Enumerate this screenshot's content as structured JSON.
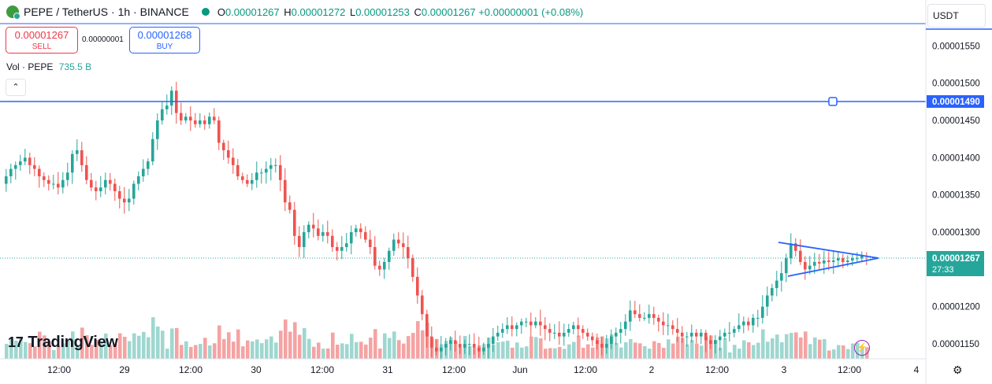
{
  "header": {
    "symbol": "PEPE / TetherUS · 1h · BINANCE",
    "ohlc": {
      "o_label": "O",
      "o": "0.00001267",
      "h_label": "H",
      "h": "0.00001272",
      "l_label": "L",
      "l": "0.00001253",
      "c_label": "C",
      "c": "0.00001267",
      "change": "+0.00000001 (+0.08%)"
    }
  },
  "trade": {
    "sell_price": "0.00001267",
    "sell_label": "SELL",
    "spread": "0.00000001",
    "buy_price": "0.00001268",
    "buy_label": "BUY"
  },
  "volume_legend": {
    "label": "Vol · PEPE",
    "value": "735.5 B"
  },
  "currency": "USDT",
  "brand": "TradingView",
  "colors": {
    "up": "#26a69a",
    "down": "#ef5350",
    "up_vol": "#9fd7d0",
    "down_vol": "#f5a3a3",
    "line": "#2962ff"
  },
  "price_axis": {
    "ticks": [
      "0.00001550",
      "0.00001500",
      "0.00001450",
      "0.00001400",
      "0.00001350",
      "0.00001300",
      "0.00001200",
      "0.00001150"
    ],
    "tick_values": [
      1.55e-05,
      1.5e-05,
      1.45e-05,
      1.4e-05,
      1.35e-05,
      1.3e-05,
      1.2e-05,
      1.15e-05
    ],
    "last_price_label": "0.00001267",
    "countdown": "27:33",
    "hline_label": "0.00001490",
    "range": [
      1.13e-05,
      1.58e-05
    ]
  },
  "time_axis": [
    "12:00",
    "29",
    "12:00",
    "30",
    "12:00",
    "31",
    "12:00",
    "Jun",
    "12:00",
    "2",
    "12:00",
    "3",
    "12:00",
    "4"
  ],
  "chart_data": {
    "type": "candlestick",
    "symbol": "PEPE / TetherUS",
    "interval": "1h",
    "horizontal_line": 1.49e-05,
    "last_price": 1.267e-05,
    "triangle_pattern": {
      "upper": [
        1.29e-05,
        1.267e-05
      ],
      "lower": [
        1.24e-05,
        1.267e-05
      ]
    },
    "grid": false,
    "closes": [
      1.375,
      1.385,
      1.39,
      1.395,
      1.4,
      1.39,
      1.385,
      1.375,
      1.37,
      1.365,
      1.365,
      1.36,
      1.37,
      1.38,
      1.405,
      1.41,
      1.39,
      1.37,
      1.36,
      1.355,
      1.36,
      1.37,
      1.365,
      1.355,
      1.345,
      1.34,
      1.345,
      1.365,
      1.375,
      1.385,
      1.395,
      1.425,
      1.45,
      1.465,
      1.47,
      1.49,
      1.46,
      1.45,
      1.455,
      1.45,
      1.445,
      1.45,
      1.445,
      1.455,
      1.45,
      1.42,
      1.41,
      1.4,
      1.39,
      1.375,
      1.37,
      1.365,
      1.37,
      1.38,
      1.38,
      1.385,
      1.39,
      1.39,
      1.37,
      1.34,
      1.33,
      1.295,
      1.28,
      1.3,
      1.31,
      1.305,
      1.295,
      1.3,
      1.295,
      1.28,
      1.275,
      1.28,
      1.285,
      1.3,
      1.305,
      1.3,
      1.29,
      1.28,
      1.255,
      1.25,
      1.26,
      1.275,
      1.29,
      1.285,
      1.28,
      1.265,
      1.24,
      1.215,
      1.19,
      1.16,
      1.145,
      1.14,
      1.145,
      1.15,
      1.155,
      1.15,
      1.145,
      1.15,
      1.15,
      1.145,
      1.14,
      1.145,
      1.15,
      1.16,
      1.165,
      1.17,
      1.175,
      1.17,
      1.175,
      1.18,
      1.18,
      1.175,
      1.18,
      1.175,
      1.17,
      1.165,
      1.165,
      1.16,
      1.165,
      1.17,
      1.175,
      1.17,
      1.165,
      1.16,
      1.155,
      1.15,
      1.145,
      1.15,
      1.16,
      1.165,
      1.17,
      1.18,
      1.195,
      1.19,
      1.185,
      1.185,
      1.19,
      1.185,
      1.18,
      1.175,
      1.175,
      1.17,
      1.165,
      1.16,
      1.16,
      1.165,
      1.16,
      1.165,
      1.155,
      1.15,
      1.155,
      1.16,
      1.165,
      1.165,
      1.17,
      1.175,
      1.18,
      1.175,
      1.185,
      1.185,
      1.2,
      1.215,
      1.225,
      1.235,
      1.245,
      1.265,
      1.285,
      1.275,
      1.26,
      1.25,
      1.255,
      1.26,
      1.258,
      1.262,
      1.26,
      1.262,
      1.265,
      1.26,
      1.262,
      1.265,
      1.265,
      1.268,
      1.267
    ],
    "ylim": [
      1.13e-05,
      1.58e-05
    ]
  }
}
